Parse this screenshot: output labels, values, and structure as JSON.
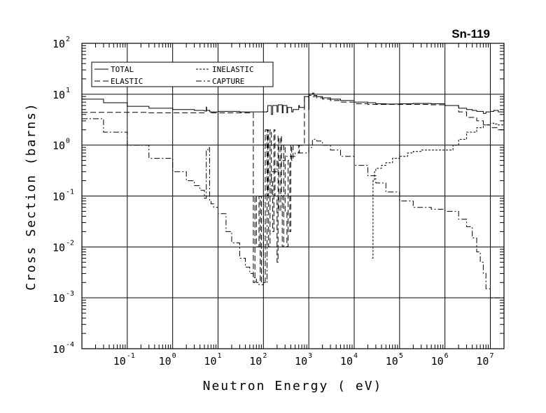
{
  "chart_data": {
    "type": "line",
    "title": "Sn-119",
    "xlabel": "Neutron Energy ( eV)",
    "ylabel": "Cross Section (barns)",
    "x_scale": "log",
    "y_scale": "log",
    "xlim": [
      0.01,
      20000000
    ],
    "ylim": [
      0.0001,
      100
    ],
    "grid": true,
    "legend_position": "top-left",
    "x_ticks": [
      {
        "base": "10",
        "exp": "-1",
        "value": 0.1
      },
      {
        "base": "10",
        "exp": "0",
        "value": 1
      },
      {
        "base": "10",
        "exp": "1",
        "value": 10
      },
      {
        "base": "10",
        "exp": "2",
        "value": 100
      },
      {
        "base": "10",
        "exp": "3",
        "value": 1000
      },
      {
        "base": "10",
        "exp": "4",
        "value": 10000
      },
      {
        "base": "10",
        "exp": "5",
        "value": 100000
      },
      {
        "base": "10",
        "exp": "6",
        "value": 1000000
      },
      {
        "base": "10",
        "exp": "7",
        "value": 10000000
      }
    ],
    "y_ticks": [
      {
        "base": "10",
        "exp": "-4",
        "value": 0.0001
      },
      {
        "base": "10",
        "exp": "-3",
        "value": 0.001
      },
      {
        "base": "10",
        "exp": "-2",
        "value": 0.01
      },
      {
        "base": "10",
        "exp": "-1",
        "value": 0.1
      },
      {
        "base": "10",
        "exp": "0",
        "value": 1
      },
      {
        "base": "10",
        "exp": "1",
        "value": 10
      },
      {
        "base": "10",
        "exp": "2",
        "value": 100
      }
    ],
    "series": [
      {
        "name": "TOTAL",
        "dash": "solid",
        "x": [
          0.01,
          0.03,
          0.1,
          0.3,
          1,
          3,
          5,
          5.5,
          5.6,
          6.5,
          6.6,
          10,
          30,
          100,
          120,
          125,
          150,
          160,
          200,
          210,
          260,
          270,
          330,
          340,
          420,
          450,
          600,
          620,
          800,
          1000,
          1010,
          1200,
          1300,
          1500,
          2000,
          3000,
          5000,
          10000,
          20000,
          30000,
          50000,
          100000,
          200000,
          500000,
          1000000,
          1500000,
          2000000,
          3000000,
          4000000,
          5000000,
          7000000,
          8000000,
          10000000,
          12000000,
          15000000,
          20000000
        ],
        "y": [
          8,
          6.8,
          5.8,
          5.3,
          5.0,
          4.8,
          4.7,
          5.6,
          4.8,
          4.8,
          4.5,
          4.6,
          4.5,
          4.5,
          4.6,
          6.0,
          4.0,
          6.0,
          4.5,
          6.2,
          4.3,
          6.0,
          4.3,
          5.5,
          4.5,
          5.0,
          6.0,
          5.5,
          9.0,
          5.0,
          10,
          10.5,
          9.5,
          9.0,
          8.5,
          8.0,
          7.5,
          7.0,
          6.8,
          6.5,
          6.4,
          6.5,
          6.6,
          6.5,
          6.0,
          6.0,
          5.3,
          5.0,
          4.8,
          4.6,
          4.2,
          4.5,
          4.6,
          4.8,
          4.5,
          4.0
        ]
      },
      {
        "name": "ELASTIC",
        "dash": "long-dash",
        "x": [
          0.01,
          0.03,
          0.1,
          0.3,
          1,
          3,
          5,
          5.5,
          6.5,
          10,
          30,
          60,
          65,
          70,
          80,
          85,
          90,
          100,
          110,
          120,
          125,
          130,
          140,
          150,
          160,
          170,
          180,
          200,
          210,
          220,
          240,
          250,
          260,
          280,
          300,
          330,
          350,
          380,
          400,
          420,
          450,
          600,
          620,
          800,
          1000,
          1010,
          1200,
          1500,
          2000,
          3000,
          5000,
          10000,
          20000,
          50000,
          100000,
          200000,
          500000,
          1000000,
          2000000,
          3000000,
          5000000,
          7000000,
          10000000,
          15000000,
          20000000
        ],
        "y": [
          4.4,
          4.4,
          4.4,
          4.3,
          4.3,
          4.3,
          4.3,
          4.8,
          4.3,
          4.3,
          4.3,
          0.002,
          0.1,
          0.01,
          0.1,
          0.002,
          0.1,
          0.002,
          2.0,
          0.1,
          2.0,
          0.01,
          2.0,
          0.2,
          0.02,
          2.0,
          0.1,
          0.005,
          1.5,
          0.05,
          1.5,
          0.1,
          0.01,
          1.0,
          0.05,
          0.01,
          0.5,
          0.02,
          1.0,
          0.5,
          1.0,
          0.7,
          1.0,
          9,
          5,
          9.5,
          9.0,
          8.5,
          8.0,
          7.5,
          7.0,
          6.5,
          6.3,
          6.3,
          6.3,
          6.3,
          6.2,
          6.0,
          4.5,
          3.5,
          3.0,
          2.5,
          2.2,
          2.0,
          1.8
        ]
      },
      {
        "name": "INELASTIC",
        "dash": "short-dash",
        "x": [
          25000,
          26000,
          28000,
          30000,
          40000,
          50000,
          70000,
          100000,
          150000,
          200000,
          300000,
          500000,
          1000000,
          1500000,
          2000000,
          3000000,
          5000000,
          7000000,
          10000000,
          12000000,
          15000000,
          20000000
        ],
        "y": [
          0.006,
          0.2,
          0.3,
          0.35,
          0.4,
          0.45,
          0.55,
          0.6,
          0.7,
          0.75,
          0.8,
          0.8,
          0.8,
          1.0,
          1.3,
          1.8,
          2.2,
          2.5,
          2.7,
          2.6,
          2.5,
          2.4
        ]
      },
      {
        "name": "CAPTURE",
        "dash": "dash-dot",
        "x": [
          0.01,
          0.03,
          0.1,
          0.3,
          1,
          2,
          3,
          4,
          5,
          5.5,
          6,
          6.5,
          7,
          8,
          10,
          15,
          20,
          30,
          40,
          50,
          60,
          70,
          80,
          90,
          100,
          120,
          150,
          200,
          300,
          500,
          1000,
          1200,
          1500,
          2000,
          3000,
          5000,
          10000,
          20000,
          30000,
          50000,
          100000,
          200000,
          500000,
          1000000,
          2000000,
          3000000,
          4000000,
          5000000,
          6000000,
          7000000,
          8000000,
          10000000,
          12000000,
          15000000,
          20000000
        ],
        "y": [
          3.3,
          1.8,
          1.0,
          0.55,
          0.3,
          0.2,
          0.16,
          0.13,
          0.09,
          0.8,
          0.9,
          0.08,
          0.07,
          0.06,
          0.045,
          0.02,
          0.012,
          0.006,
          0.004,
          0.003,
          0.0025,
          0.002,
          0.0018,
          0.0018,
          0.002,
          0.1,
          0.3,
          0.5,
          0.6,
          0.7,
          0.9,
          1.3,
          1.2,
          1.0,
          0.8,
          0.6,
          0.4,
          0.25,
          0.18,
          0.12,
          0.08,
          0.06,
          0.055,
          0.05,
          0.035,
          0.025,
          0.015,
          0.008,
          0.005,
          0.003,
          0.0015,
          0.001,
          0.001,
          0.001,
          0.0012
        ]
      }
    ]
  }
}
